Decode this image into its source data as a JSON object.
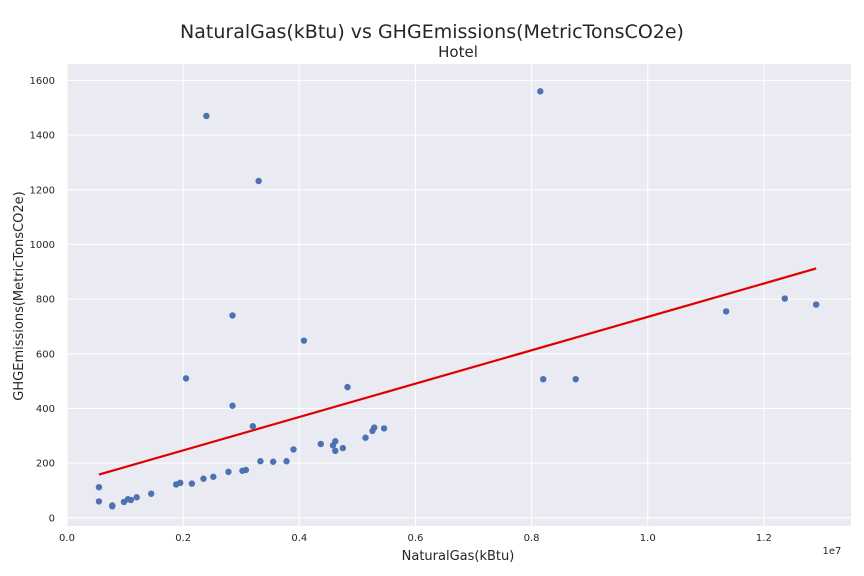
{
  "chart_data": {
    "type": "scatter",
    "title": "NaturalGas(kBtu) vs GHGEmissions(MetricTonsCO2e)",
    "subtitle": "Hotel",
    "xlabel": "NaturalGas(kBtu)",
    "ylabel": "GHGEmissions(MetricTonsCO2e)",
    "x_offset_label": "1e7",
    "xlim": [
      0,
      1.35
    ],
    "ylim": [
      -30,
      1660
    ],
    "x_ticks": [
      0.0,
      0.2,
      0.4,
      0.6,
      0.8,
      1.0,
      1.2
    ],
    "x_tick_labels": [
      "0.0",
      "0.2",
      "0.4",
      "0.6",
      "0.8",
      "1.0",
      "1.2"
    ],
    "y_ticks": [
      0,
      200,
      400,
      600,
      800,
      1000,
      1200,
      1400,
      1600
    ],
    "y_tick_labels": [
      "0",
      "200",
      "400",
      "600",
      "800",
      "1000",
      "1200",
      "1400",
      "1600"
    ],
    "grid": true,
    "colors": {
      "points": "#4c72b0",
      "fit_line": "#e00000",
      "background": "#eaeaf2",
      "grid": "#ffffff"
    },
    "points": [
      {
        "x": 0.055,
        "y": 112
      },
      {
        "x": 0.055,
        "y": 60
      },
      {
        "x": 0.078,
        "y": 45
      },
      {
        "x": 0.078,
        "y": 42
      },
      {
        "x": 0.098,
        "y": 58
      },
      {
        "x": 0.105,
        "y": 68
      },
      {
        "x": 0.11,
        "y": 65
      },
      {
        "x": 0.12,
        "y": 75
      },
      {
        "x": 0.145,
        "y": 88
      },
      {
        "x": 0.188,
        "y": 122
      },
      {
        "x": 0.195,
        "y": 128
      },
      {
        "x": 0.215,
        "y": 125
      },
      {
        "x": 0.235,
        "y": 143
      },
      {
        "x": 0.252,
        "y": 150
      },
      {
        "x": 0.278,
        "y": 168
      },
      {
        "x": 0.302,
        "y": 172
      },
      {
        "x": 0.308,
        "y": 175
      },
      {
        "x": 0.32,
        "y": 335
      },
      {
        "x": 0.333,
        "y": 207
      },
      {
        "x": 0.355,
        "y": 205
      },
      {
        "x": 0.378,
        "y": 207
      },
      {
        "x": 0.39,
        "y": 250
      },
      {
        "x": 0.437,
        "y": 270
      },
      {
        "x": 0.458,
        "y": 265
      },
      {
        "x": 0.462,
        "y": 280
      },
      {
        "x": 0.462,
        "y": 245
      },
      {
        "x": 0.475,
        "y": 255
      },
      {
        "x": 0.514,
        "y": 293
      },
      {
        "x": 0.526,
        "y": 318
      },
      {
        "x": 0.529,
        "y": 330
      },
      {
        "x": 0.546,
        "y": 327
      },
      {
        "x": 0.205,
        "y": 510
      },
      {
        "x": 0.285,
        "y": 740
      },
      {
        "x": 0.285,
        "y": 410
      },
      {
        "x": 0.24,
        "y": 1470
      },
      {
        "x": 0.33,
        "y": 1232
      },
      {
        "x": 0.408,
        "y": 648
      },
      {
        "x": 0.483,
        "y": 478
      },
      {
        "x": 0.815,
        "y": 1560
      },
      {
        "x": 0.82,
        "y": 507
      },
      {
        "x": 0.876,
        "y": 507
      },
      {
        "x": 1.135,
        "y": 755
      },
      {
        "x": 1.236,
        "y": 802
      },
      {
        "x": 1.29,
        "y": 780
      }
    ],
    "fit_line": [
      {
        "x": 0.055,
        "y": 158
      },
      {
        "x": 1.29,
        "y": 912
      }
    ]
  }
}
